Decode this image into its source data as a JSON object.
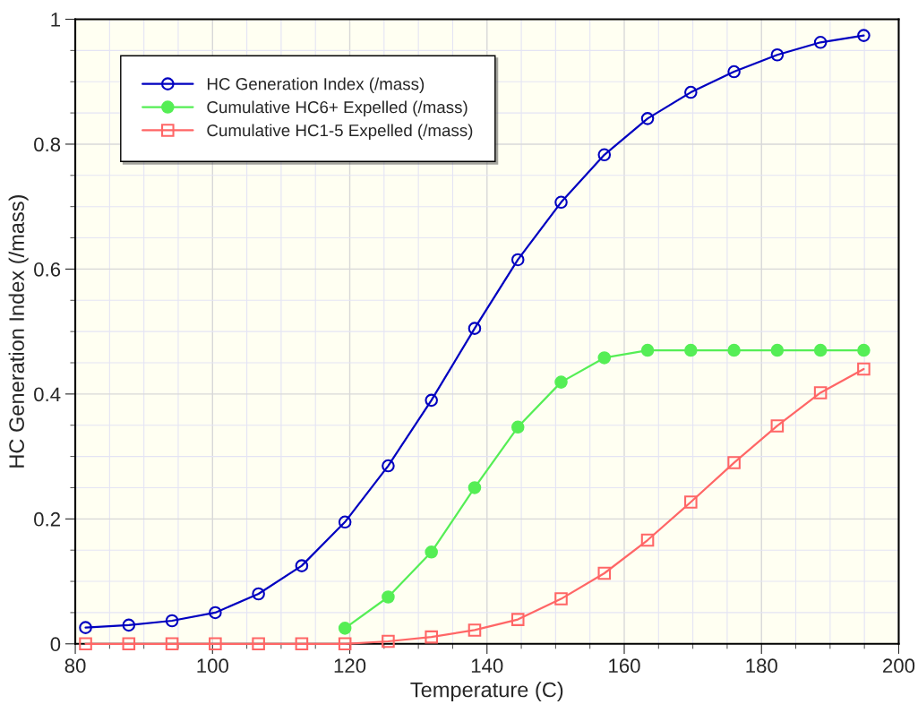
{
  "chart_data": {
    "type": "line",
    "xlabel": "Temperature (C)",
    "ylabel": "HC Generation Index (/mass)",
    "xlim": [
      80,
      200
    ],
    "ylim": [
      0,
      1
    ],
    "xticks": [
      80,
      100,
      120,
      140,
      160,
      180,
      200
    ],
    "yticks": [
      0,
      0.2,
      0.4,
      0.6,
      0.8,
      1
    ],
    "grid": true,
    "legend": "top left",
    "series": [
      {
        "name": "HC Generation Index (/mass)",
        "color": "#0000c0",
        "marker": "circle",
        "x": [
          81.5,
          87.8,
          94.1,
          100.4,
          106.7,
          113.0,
          119.3,
          125.6,
          131.9,
          138.2,
          144.5,
          150.8,
          157.1,
          163.4,
          169.7,
          176.0,
          182.3,
          188.6,
          194.9
        ],
        "values": [
          0.026,
          0.03,
          0.037,
          0.05,
          0.08,
          0.125,
          0.195,
          0.285,
          0.39,
          0.505,
          0.615,
          0.707,
          0.783,
          0.841,
          0.883,
          0.916,
          0.943,
          0.963,
          0.974
        ]
      },
      {
        "name": "Cumulative HC6+ Expelled (/mass)",
        "color": "#55ee55",
        "marker": "circle_filled",
        "x": [
          119.3,
          125.6,
          131.9,
          138.2,
          144.5,
          150.8,
          157.1,
          163.4,
          169.7,
          176.0,
          182.3,
          188.6,
          194.9
        ],
        "values": [
          0.025,
          0.075,
          0.147,
          0.25,
          0.347,
          0.419,
          0.458,
          0.47,
          0.47,
          0.47,
          0.47,
          0.47,
          0.47
        ]
      },
      {
        "name": "Cumulative HC1-5 Expelled (/mass)",
        "color": "#ff6666",
        "marker": "square",
        "x": [
          81.5,
          87.8,
          94.1,
          100.4,
          106.7,
          113.0,
          119.3,
          125.6,
          131.9,
          138.2,
          144.5,
          150.8,
          157.1,
          163.4,
          169.7,
          176.0,
          182.3,
          188.6,
          194.9
        ],
        "values": [
          0,
          0,
          0,
          0,
          0,
          0,
          0,
          0.004,
          0.011,
          0.022,
          0.039,
          0.072,
          0.113,
          0.166,
          0.227,
          0.29,
          0.349,
          0.402,
          0.44
        ]
      }
    ]
  }
}
